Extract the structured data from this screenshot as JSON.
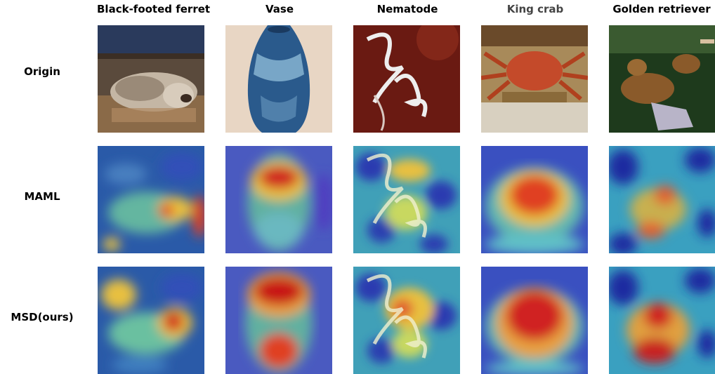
{
  "columns": [
    "Black-footed ferret",
    "Vase",
    "Nematode",
    "King crab",
    "Golden retriever"
  ],
  "rows": [
    "Origin",
    "MAML",
    "MSD(ours)"
  ],
  "image_ids": [
    [
      "ferret-origin",
      "vase-origin",
      "nematode-origin",
      "crab-origin",
      "retriever-origin"
    ],
    [
      "ferret-maml",
      "vase-maml",
      "nematode-maml",
      "crab-maml",
      "retriever-maml"
    ],
    [
      "ferret-msd",
      "vase-msd",
      "nematode-msd",
      "crab-msd",
      "retriever-msd"
    ]
  ]
}
